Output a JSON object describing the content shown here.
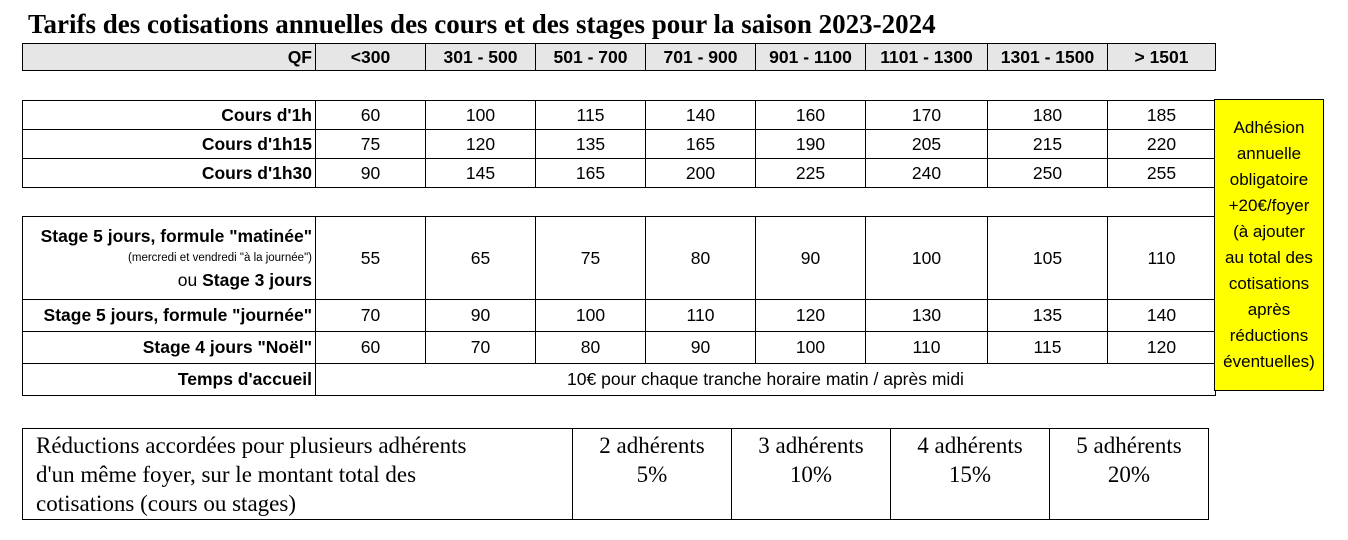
{
  "title": "Tarifs des cotisations annuelles des cours et des stages pour la saison 2023-2024",
  "qf": {
    "label": "QF",
    "brackets": [
      "<300",
      "301 - 500",
      "501 - 700",
      "701 - 900",
      "901 - 1100",
      "1101 - 1300",
      "1301 - 1500",
      "> 1501"
    ]
  },
  "courses": [
    {
      "label": "Cours d'1h",
      "values": [
        "60",
        "100",
        "115",
        "140",
        "160",
        "170",
        "180",
        "185"
      ]
    },
    {
      "label": "Cours d'1h15",
      "values": [
        "75",
        "120",
        "135",
        "165",
        "190",
        "205",
        "215",
        "220"
      ]
    },
    {
      "label": "Cours d'1h30",
      "values": [
        "90",
        "145",
        "165",
        "200",
        "225",
        "240",
        "250",
        "255"
      ]
    }
  ],
  "stages": {
    "matinee": {
      "label_line1": "Stage 5 jours, formule \"matinée\"",
      "label_note": "(mercredi et vendredi \"à la journée\")",
      "label_or": "ou",
      "label_line3": "Stage 3 jours",
      "values": [
        "55",
        "65",
        "75",
        "80",
        "90",
        "100",
        "105",
        "110"
      ]
    },
    "journee": {
      "label": "Stage 5 jours, formule \"journée\"",
      "values": [
        "70",
        "90",
        "100",
        "110",
        "120",
        "130",
        "135",
        "140"
      ]
    },
    "noel": {
      "label": "Stage 4 jours \"Noël\"",
      "values": [
        "60",
        "70",
        "80",
        "90",
        "100",
        "110",
        "115",
        "120"
      ]
    },
    "accueil": {
      "label": "Temps d'accueil",
      "value": "10€ pour chaque tranche horaire matin / après midi"
    }
  },
  "adhesion": {
    "lines": [
      "Adhésion",
      "annuelle",
      "obligatoire",
      "+20€/foyer",
      "(à ajouter",
      "au total des",
      "cotisations",
      "après",
      "réductions",
      "éventuelles)"
    ],
    "color": "#ffff00"
  },
  "reductions": {
    "description_lines": [
      "Réductions accordées pour plusieurs adhérents",
      "d'un même foyer, sur le montant total des",
      "cotisations (cours ou stages)"
    ],
    "tiers": [
      {
        "label": "2 adhérents",
        "value": "5%"
      },
      {
        "label": "3 adhérents",
        "value": "10%"
      },
      {
        "label": "4 adhérents",
        "value": "15%"
      },
      {
        "label": "5 adhérents",
        "value": "20%"
      }
    ]
  }
}
